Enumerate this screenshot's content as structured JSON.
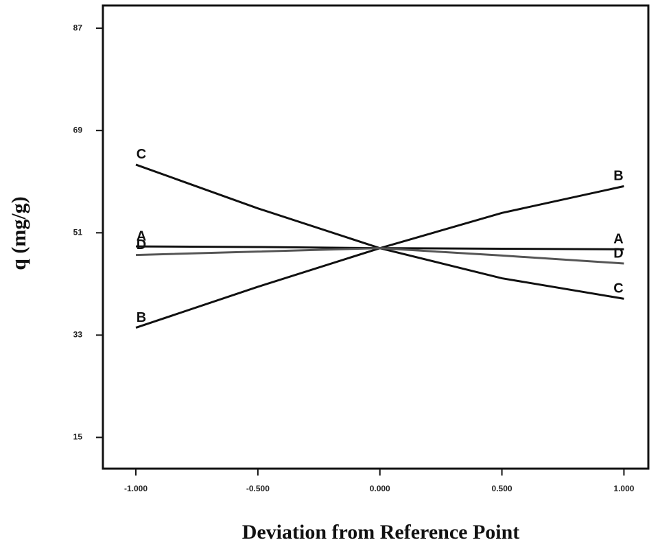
{
  "chart_data": {
    "type": "line",
    "x_label": "Deviation from Reference Point",
    "y_label": "q (mg/g)",
    "x": [
      -1,
      -0.5,
      0,
      0.5,
      1
    ],
    "series": [
      {
        "name": "A",
        "color": "#111111",
        "values": [
          48.6,
          48.5,
          48.3,
          48.2,
          48.1
        ]
      },
      {
        "name": "B",
        "color": "#111111",
        "values": [
          34.3,
          41.5,
          48.3,
          54.5,
          59.2
        ]
      },
      {
        "name": "C",
        "color": "#111111",
        "values": [
          63.0,
          55.3,
          48.3,
          43.0,
          39.4
        ]
      },
      {
        "name": "D",
        "color": "#555555",
        "values": [
          47.1,
          47.7,
          48.3,
          47.0,
          45.6
        ]
      }
    ],
    "xlim": [
      -1.135,
      1.1
    ],
    "ylim": [
      9.5,
      91
    ],
    "xticks": [
      {
        "value": -1,
        "label": "-1.000"
      },
      {
        "value": -0.5,
        "label": "-0.500"
      },
      {
        "value": 0,
        "label": "0.000"
      },
      {
        "value": 0.5,
        "label": "0.500"
      },
      {
        "value": 1,
        "label": "1.000"
      }
    ],
    "yticks": [
      15,
      33,
      51,
      69,
      87
    ]
  }
}
